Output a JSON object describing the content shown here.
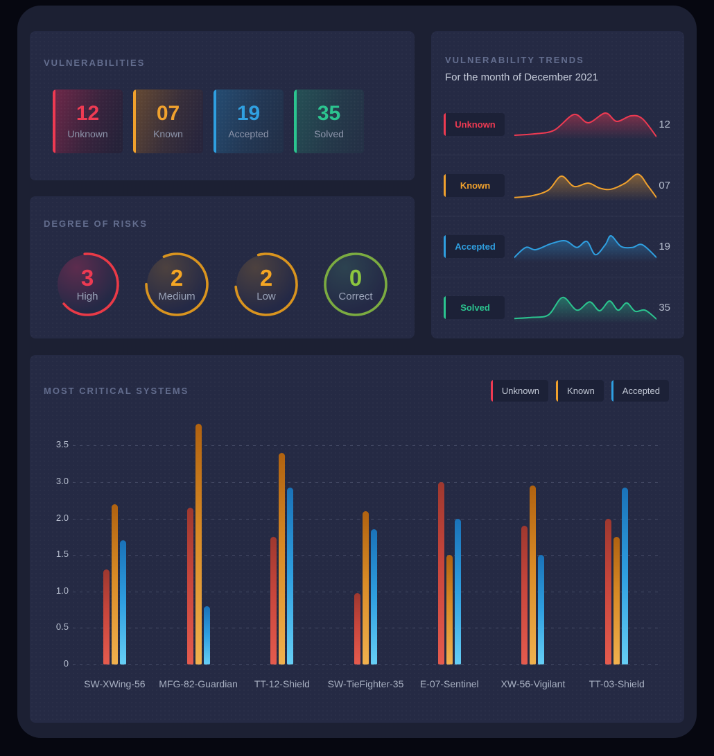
{
  "colors": {
    "red": "#ee3a52",
    "orange": "#f0a12d",
    "blue": "#2f9fe0",
    "green": "#2bc48f",
    "gauge_orange": "#d9941f",
    "gauge_green": "#7bab41",
    "gauge_green_number": "#8cc63f"
  },
  "vulnerabilities": {
    "title": "VULNERABILITIES",
    "stats": [
      {
        "label": "Unknown",
        "value": "12",
        "color_key": "red"
      },
      {
        "label": "Known",
        "value": "07",
        "color_key": "orange"
      },
      {
        "label": "Accepted",
        "value": "19",
        "color_key": "blue"
      },
      {
        "label": "Solved",
        "value": "35",
        "color_key": "green"
      }
    ]
  },
  "risks": {
    "title": "DEGREE OF RISKS",
    "gauges": [
      {
        "label": "High",
        "value": "3",
        "ring_color": "#e93a47",
        "number_color": "#ee3a52",
        "start_deg": -95,
        "sweep_deg": 235,
        "tint": "rgba(224,52,96,0.30)"
      },
      {
        "label": "Medium",
        "value": "2",
        "ring_color": "#d9941f",
        "number_color": "#f5a623",
        "start_deg": -115,
        "sweep_deg": 295,
        "tint": "rgba(224,154,38,0.22)"
      },
      {
        "label": "Low",
        "value": "2",
        "ring_color": "#d9941f",
        "number_color": "#f5a623",
        "start_deg": -105,
        "sweep_deg": 280,
        "tint": "rgba(224,154,38,0.22)"
      },
      {
        "label": "Correct",
        "value": "0",
        "ring_color": "#7bab41",
        "number_color": "#8cc63f",
        "start_deg": -90,
        "sweep_deg": 360,
        "tint": "rgba(80,170,120,0.20)"
      }
    ]
  },
  "trends": {
    "title": "VULNERABILITY TRENDS",
    "subtitle": "For the month of December 2021"
  },
  "critical": {
    "title": "MOST CRITICAL SYSTEMS"
  },
  "chart_data": [
    {
      "type": "bar",
      "title": "MOST CRITICAL SYSTEMS",
      "categories": [
        "SW-XWing-56",
        "MFG-82-Guardian",
        "TT-12-Shield",
        "SW-TieFighter-35",
        "E-07-Sentinel",
        "XW-56-Vigilant",
        "TT-03-Shield"
      ],
      "series": [
        {
          "name": "Unknown",
          "color_key": "red",
          "values": [
            1.3,
            2.3,
            1.75,
            0.98,
            3.0,
            1.9,
            2.0
          ]
        },
        {
          "name": "Known",
          "color_key": "orange",
          "values": [
            2.4,
            3.8,
            3.4,
            2.2,
            1.5,
            2.9,
            1.75
          ]
        },
        {
          "name": "Accepted",
          "color_key": "blue",
          "values": [
            1.7,
            0.8,
            2.85,
            1.85,
            2.0,
            1.5,
            2.85
          ]
        }
      ],
      "y_axis_labels_bottom_to_top": [
        "0",
        "0.5",
        "1.0",
        "1.5",
        "2.0",
        "3.0",
        "3.5"
      ],
      "grid": true,
      "legend_position": "top-right"
    },
    {
      "type": "area",
      "name": "Unknown",
      "current_value": "12",
      "color_key": "red",
      "points_pct": [
        [
          0,
          10
        ],
        [
          14,
          15
        ],
        [
          28,
          28
        ],
        [
          42,
          85
        ],
        [
          52,
          55
        ],
        [
          64,
          90
        ],
        [
          72,
          60
        ],
        [
          82,
          80
        ],
        [
          90,
          70
        ],
        [
          100,
          5
        ]
      ]
    },
    {
      "type": "area",
      "name": "Known",
      "current_value": "07",
      "color_key": "orange",
      "points_pct": [
        [
          0,
          8
        ],
        [
          12,
          14
        ],
        [
          24,
          35
        ],
        [
          33,
          85
        ],
        [
          42,
          48
        ],
        [
          52,
          60
        ],
        [
          60,
          42
        ],
        [
          68,
          38
        ],
        [
          78,
          60
        ],
        [
          87,
          92
        ],
        [
          94,
          50
        ],
        [
          100,
          8
        ]
      ]
    },
    {
      "type": "area",
      "name": "Accepted",
      "current_value": "19",
      "color_key": "blue",
      "points_pct": [
        [
          0,
          12
        ],
        [
          8,
          48
        ],
        [
          15,
          40
        ],
        [
          26,
          62
        ],
        [
          36,
          72
        ],
        [
          44,
          48
        ],
        [
          51,
          70
        ],
        [
          57,
          22
        ],
        [
          64,
          58
        ],
        [
          68,
          90
        ],
        [
          75,
          52
        ],
        [
          83,
          48
        ],
        [
          90,
          58
        ],
        [
          100,
          12
        ]
      ]
    },
    {
      "type": "area",
      "name": "Solved",
      "current_value": "35",
      "color_key": "green",
      "points_pct": [
        [
          0,
          12
        ],
        [
          12,
          16
        ],
        [
          24,
          25
        ],
        [
          34,
          88
        ],
        [
          44,
          42
        ],
        [
          53,
          72
        ],
        [
          60,
          40
        ],
        [
          67,
          75
        ],
        [
          73,
          42
        ],
        [
          79,
          68
        ],
        [
          85,
          38
        ],
        [
          92,
          42
        ],
        [
          100,
          10
        ]
      ]
    }
  ]
}
